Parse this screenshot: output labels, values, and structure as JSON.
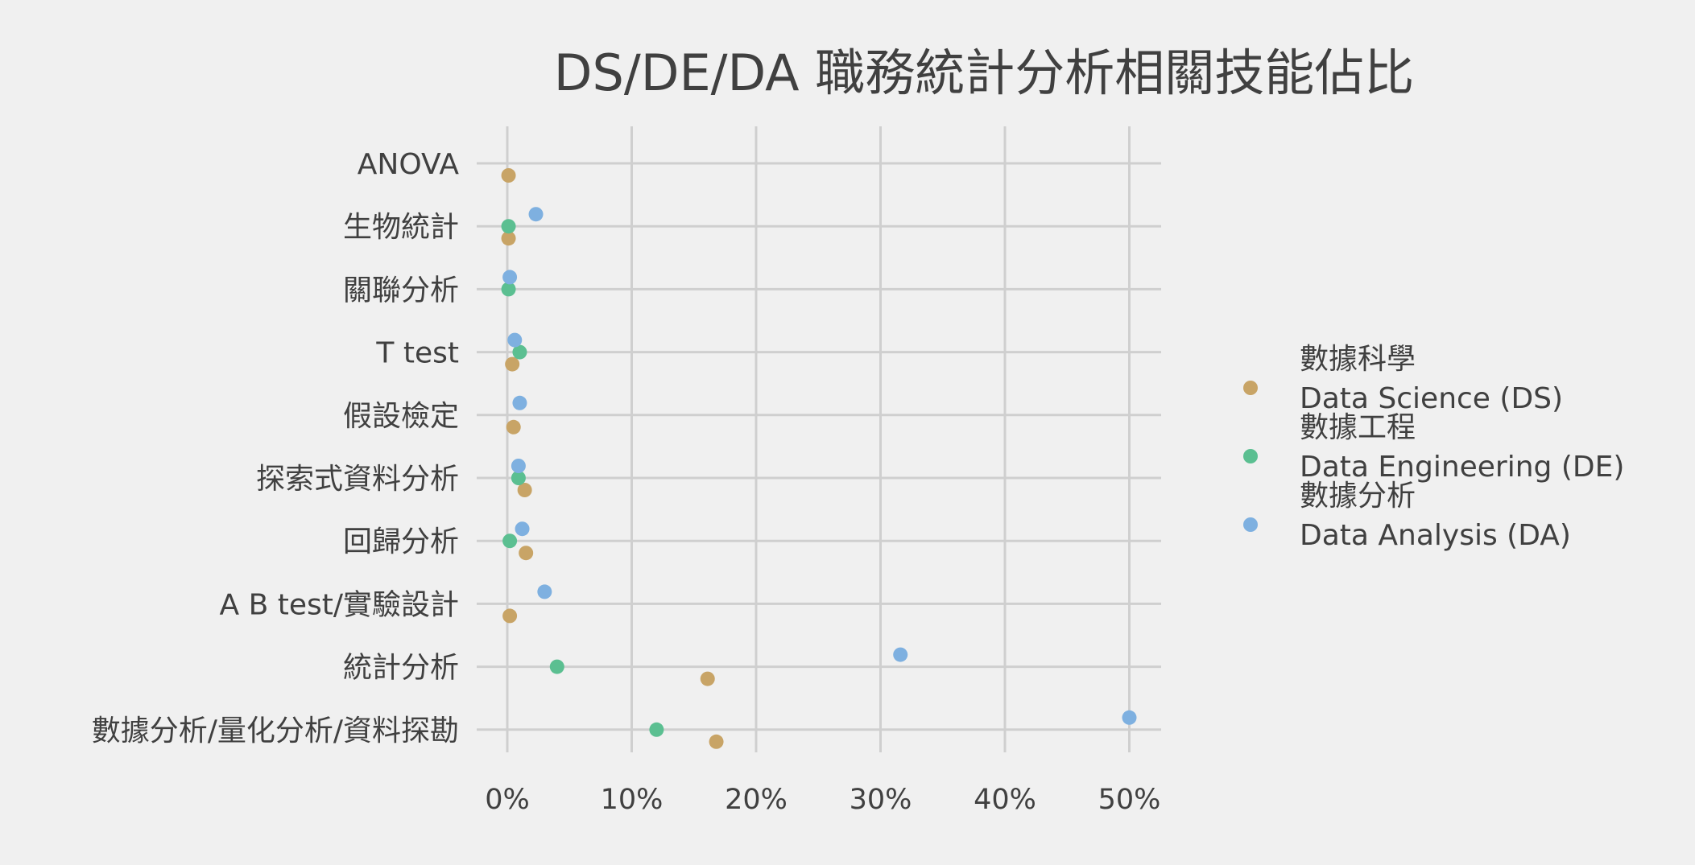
{
  "chart_data": {
    "type": "scatter",
    "title": "DS/DE/DA 職務統計分析相關技能佔比",
    "categories": [
      "ANOVA",
      "生物統計",
      "關聯分析",
      "T test",
      "假設檢定",
      "探索式資料分析",
      "回歸分析",
      "A B test/實驗設計",
      "統計分析",
      "數據分析/量化分析/資料探勘"
    ],
    "x_ticks": [
      "0%",
      "10%",
      "20%",
      "30%",
      "40%",
      "50%"
    ],
    "xlim": [
      0,
      50
    ],
    "grid": true,
    "legend_position": "right",
    "series": [
      {
        "name": "數據科學\nData Science (DS)",
        "name_line1": "數據科學",
        "name_line2": "Data Science (DS)",
        "color": "#c8a466",
        "values": [
          0.1,
          0.1,
          null,
          0.4,
          0.5,
          1.4,
          1.5,
          0.2,
          16.1,
          16.8
        ]
      },
      {
        "name": "數據工程\nData Engineering (DE)",
        "name_line1": "數據工程",
        "name_line2": "Data Engineering (DE)",
        "color": "#5bbf91",
        "values": [
          null,
          0.1,
          0.1,
          1.0,
          null,
          0.9,
          0.2,
          null,
          4.0,
          12.0
        ]
      },
      {
        "name": "數據分析\nData Analysis (DA)",
        "name_line1": "數據分析",
        "name_line2": "Data Analysis (DA)",
        "color": "#7eb0e0",
        "values": [
          null,
          2.3,
          0.2,
          0.6,
          1.0,
          0.9,
          1.2,
          3.0,
          31.6,
          50.0
        ]
      }
    ]
  }
}
